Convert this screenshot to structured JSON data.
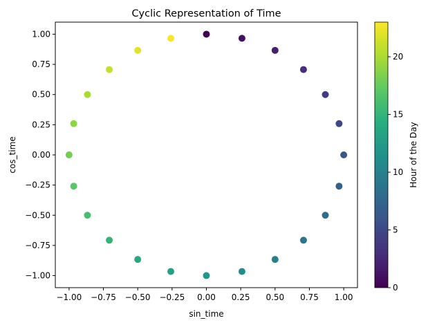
{
  "chart_data": {
    "type": "scatter",
    "title": "Cyclic Representation of Time",
    "xlabel": "sin_time",
    "ylabel": "cos_time",
    "xlim": [
      -1.1,
      1.1
    ],
    "ylim": [
      -1.1,
      1.1
    ],
    "xticks": [
      -1.0,
      -0.75,
      -0.5,
      -0.25,
      0.0,
      0.25,
      0.5,
      0.75,
      1.0
    ],
    "yticks": [
      -1.0,
      -0.75,
      -0.5,
      -0.25,
      0.0,
      0.25,
      0.5,
      0.75,
      1.0
    ],
    "xtick_labels": [
      "−1.00",
      "−0.75",
      "−0.50",
      "−0.25",
      "0.00",
      "0.25",
      "0.50",
      "0.75",
      "1.00"
    ],
    "ytick_labels": [
      "−1.00",
      "−0.75",
      "−0.50",
      "−0.25",
      "0.00",
      "0.25",
      "0.50",
      "0.75",
      "1.00"
    ],
    "grid": false,
    "colormap": "viridis",
    "colorbar": {
      "label": "Hour of the Day",
      "range": [
        0,
        23
      ],
      "ticks": [
        0,
        5,
        10,
        15,
        20
      ],
      "tick_labels": [
        "0",
        "5",
        "10",
        "15",
        "20"
      ]
    },
    "points": [
      {
        "hour": 0,
        "x": 0.0,
        "y": 1.0
      },
      {
        "hour": 1,
        "x": 0.259,
        "y": 0.966
      },
      {
        "hour": 2,
        "x": 0.5,
        "y": 0.866
      },
      {
        "hour": 3,
        "x": 0.707,
        "y": 0.707
      },
      {
        "hour": 4,
        "x": 0.866,
        "y": 0.5
      },
      {
        "hour": 5,
        "x": 0.966,
        "y": 0.259
      },
      {
        "hour": 6,
        "x": 1.0,
        "y": 0.0
      },
      {
        "hour": 7,
        "x": 0.966,
        "y": -0.259
      },
      {
        "hour": 8,
        "x": 0.866,
        "y": -0.5
      },
      {
        "hour": 9,
        "x": 0.707,
        "y": -0.707
      },
      {
        "hour": 10,
        "x": 0.5,
        "y": -0.866
      },
      {
        "hour": 11,
        "x": 0.259,
        "y": -0.966
      },
      {
        "hour": 12,
        "x": 0.0,
        "y": -1.0
      },
      {
        "hour": 13,
        "x": -0.259,
        "y": -0.966
      },
      {
        "hour": 14,
        "x": -0.5,
        "y": -0.866
      },
      {
        "hour": 15,
        "x": -0.707,
        "y": -0.707
      },
      {
        "hour": 16,
        "x": -0.866,
        "y": -0.5
      },
      {
        "hour": 17,
        "x": -0.966,
        "y": -0.259
      },
      {
        "hour": 18,
        "x": -1.0,
        "y": 0.0
      },
      {
        "hour": 19,
        "x": -0.966,
        "y": 0.259
      },
      {
        "hour": 20,
        "x": -0.866,
        "y": 0.5
      },
      {
        "hour": 21,
        "x": -0.707,
        "y": 0.707
      },
      {
        "hour": 22,
        "x": -0.5,
        "y": 0.866
      },
      {
        "hour": 23,
        "x": -0.259,
        "y": 0.966
      }
    ]
  }
}
